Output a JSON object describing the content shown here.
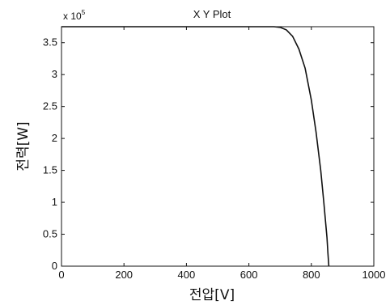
{
  "chart_data": {
    "type": "line",
    "title": "X Y Plot",
    "xlabel": "전압[V]",
    "ylabel": "전력[W]",
    "y_multiplier_base": "x 10",
    "y_multiplier_exp": "5",
    "xlim": [
      0,
      1000
    ],
    "ylim": [
      0,
      3.75
    ],
    "xticks": [
      0,
      200,
      400,
      600,
      800,
      1000
    ],
    "yticks": [
      0,
      0.5,
      1,
      1.5,
      2,
      2.5,
      3,
      3.5
    ],
    "xtick_labels": [
      "0",
      "200",
      "400",
      "600",
      "800",
      "1000"
    ],
    "ytick_labels": [
      "0",
      "0.5",
      "1",
      "1.5",
      "2",
      "2.5",
      "3",
      "3.5"
    ],
    "grid": false,
    "series": [
      {
        "color": "#111111",
        "x": [
          0,
          650,
          680,
          700,
          720,
          740,
          760,
          780,
          800,
          815,
          830,
          840,
          850,
          853,
          856
        ],
        "y": [
          3.75,
          3.75,
          3.75,
          3.74,
          3.7,
          3.6,
          3.4,
          3.1,
          2.6,
          2.1,
          1.5,
          1.0,
          0.45,
          0.2,
          0
        ]
      }
    ]
  }
}
